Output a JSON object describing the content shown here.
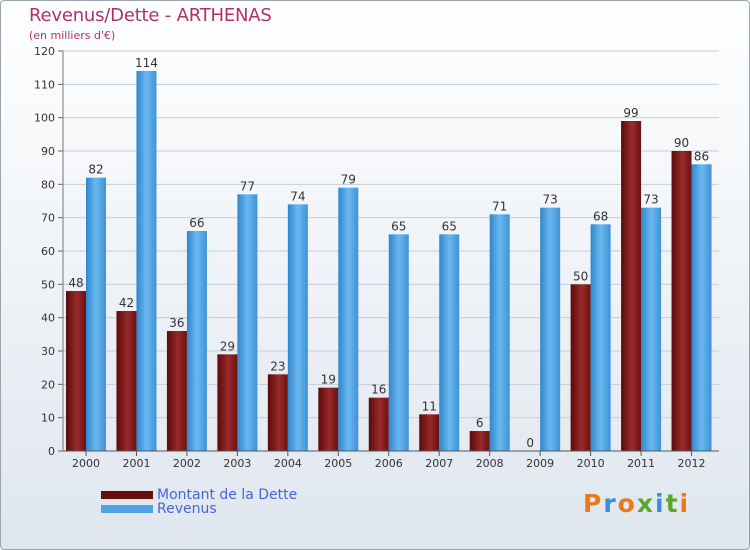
{
  "header": {
    "title": "Revenus/Dette - ARTHENAS",
    "subtitle": "(en milliers d'€)"
  },
  "legend": {
    "items": [
      {
        "label": "Montant de la Dette",
        "color": "#7a1010"
      },
      {
        "label": "Revenus",
        "color": "#4fa3e3"
      }
    ]
  },
  "logo": {
    "text": "Proxiti",
    "letters": [
      {
        "ch": "P",
        "color": "#e87a1a"
      },
      {
        "ch": "r",
        "color": "#3a8fd8"
      },
      {
        "ch": "o",
        "color": "#e87a1a"
      },
      {
        "ch": "x",
        "color": "#5aa82a"
      },
      {
        "ch": "i",
        "color": "#3a8fd8"
      },
      {
        "ch": "t",
        "color": "#5aa82a"
      },
      {
        "ch": "i",
        "color": "#e87a1a"
      }
    ]
  },
  "chart_data": {
    "type": "bar",
    "title": "Revenus/Dette - ARTHENAS",
    "subtitle": "(en milliers d'€)",
    "categories": [
      "2000",
      "2001",
      "2002",
      "2003",
      "2004",
      "2005",
      "2006",
      "2007",
      "2008",
      "2009",
      "2010",
      "2011",
      "2012"
    ],
    "series": [
      {
        "name": "Montant de la Dette",
        "color": "#7a1010",
        "values": [
          48,
          42,
          36,
          29,
          23,
          19,
          16,
          11,
          6,
          0,
          50,
          99,
          90
        ]
      },
      {
        "name": "Revenus",
        "color": "#4fa3e3",
        "values": [
          82,
          114,
          66,
          77,
          74,
          79,
          65,
          65,
          71,
          73,
          68,
          73,
          86
        ]
      }
    ],
    "ylim": [
      0,
      120
    ],
    "yticks": [
      0,
      10,
      20,
      30,
      40,
      50,
      60,
      70,
      80,
      90,
      100,
      110,
      120
    ],
    "grid": true,
    "legend_position": "bottom-left"
  }
}
